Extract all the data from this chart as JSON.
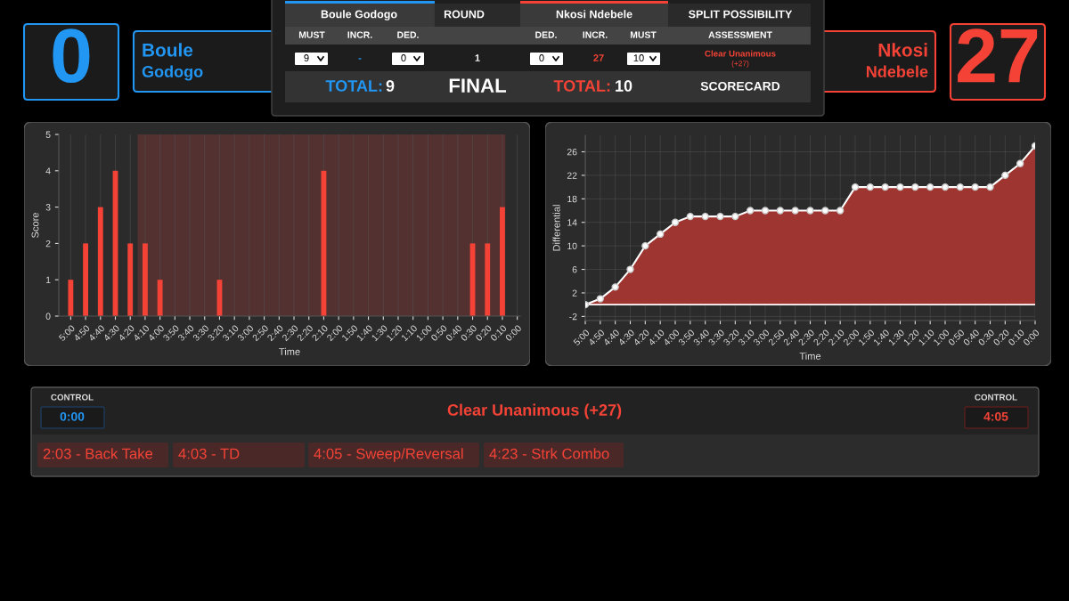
{
  "chart_data": [
    {
      "type": "other",
      "annotations": [
        "0",
        "Boule",
        "Godogo",
        "Boule Godogo",
        "ROUND",
        "Nkosi Ndebele",
        "SPLIT POSSIBILITY",
        "MUST",
        "INCR.",
        "DED.",
        "DED.",
        "INCR.",
        "MUST",
        "ASSESSMENT",
        "9",
        "-",
        "0",
        "1",
        "0",
        "27",
        "10",
        "Clear Unanimous",
        "(+27)",
        "TOTAL:",
        "9",
        "FINAL",
        "TOTAL:",
        "10",
        "SCORECARD",
        "Nkosi",
        "Ndebele",
        "27"
      ]
    },
    {
      "type": "bar",
      "xlabel": "Time",
      "ylabel": "Score",
      "x": [
        300,
        290,
        280,
        270,
        260,
        250,
        240,
        200,
        130,
        30,
        20,
        10
      ],
      "values": [
        1,
        2,
        3,
        4,
        2,
        2,
        1,
        1,
        4,
        2,
        2,
        3
      ],
      "color": "#f44336",
      "xlim": [
        308,
        -2
      ],
      "xticks": [
        {
          "value": 300,
          "label": "5:00"
        },
        {
          "value": 290,
          "label": "4:50"
        },
        {
          "value": 280,
          "label": "4:40"
        },
        {
          "value": 270,
          "label": "4:30"
        },
        {
          "value": 260,
          "label": "4:20"
        },
        {
          "value": 250,
          "label": "4:10"
        },
        {
          "value": 240,
          "label": "4:00"
        },
        {
          "value": 230,
          "label": "3:50"
        },
        {
          "value": 220,
          "label": "3:40"
        },
        {
          "value": 210,
          "label": "3:30"
        },
        {
          "value": 200,
          "label": "3:20"
        },
        {
          "value": 190,
          "label": "3:10"
        },
        {
          "value": 180,
          "label": "3:00"
        },
        {
          "value": 170,
          "label": "2:50"
        },
        {
          "value": 160,
          "label": "2:40"
        },
        {
          "value": 150,
          "label": "2:30"
        },
        {
          "value": 140,
          "label": "2:20"
        },
        {
          "value": 130,
          "label": "2:10"
        },
        {
          "value": 120,
          "label": "2:00"
        },
        {
          "value": 110,
          "label": "1:50"
        },
        {
          "value": 100,
          "label": "1:40"
        },
        {
          "value": 90,
          "label": "1:30"
        },
        {
          "value": 80,
          "label": "1:20"
        },
        {
          "value": 70,
          "label": "1:10"
        },
        {
          "value": 60,
          "label": "1:00"
        },
        {
          "value": 50,
          "label": "0:50"
        },
        {
          "value": 40,
          "label": "0:40"
        },
        {
          "value": 30,
          "label": "0:30"
        },
        {
          "value": 20,
          "label": "0:20"
        },
        {
          "value": 10,
          "label": "0:10"
        },
        {
          "value": 0,
          "label": "0:00"
        }
      ],
      "ylim": [
        0,
        5
      ],
      "yticks": [
        0,
        1,
        2,
        3,
        4,
        5
      ],
      "bands": [
        {
          "axis": "x",
          "from": 255,
          "to": 8,
          "color": "#533131"
        }
      ],
      "grid": "x"
    },
    {
      "type": "area",
      "xlabel": "Time",
      "ylabel": "Differential",
      "x": [
        300,
        290,
        280,
        270,
        260,
        250,
        240,
        230,
        220,
        210,
        200,
        190,
        180,
        170,
        160,
        150,
        140,
        130,
        120,
        110,
        100,
        90,
        80,
        70,
        60,
        50,
        40,
        30,
        20,
        10,
        0
      ],
      "series": [
        {
          "color": "#9e3530",
          "values": [
            0,
            1,
            3,
            6,
            10,
            12,
            14,
            15,
            15,
            15,
            15,
            16,
            16,
            16,
            16,
            16,
            16,
            16,
            20,
            20,
            20,
            20,
            20,
            20,
            20,
            20,
            20,
            20,
            22,
            24,
            27
          ]
        }
      ],
      "xlim": [
        300,
        0
      ],
      "xticks": [
        {
          "value": 300,
          "label": "5:00"
        },
        {
          "value": 290,
          "label": "4:50"
        },
        {
          "value": 280,
          "label": "4:40"
        },
        {
          "value": 270,
          "label": "4:30"
        },
        {
          "value": 260,
          "label": "4:20"
        },
        {
          "value": 250,
          "label": "4:10"
        },
        {
          "value": 240,
          "label": "4:00"
        },
        {
          "value": 230,
          "label": "3:50"
        },
        {
          "value": 220,
          "label": "3:40"
        },
        {
          "value": 210,
          "label": "3:30"
        },
        {
          "value": 200,
          "label": "3:20"
        },
        {
          "value": 190,
          "label": "3:10"
        },
        {
          "value": 180,
          "label": "3:00"
        },
        {
          "value": 170,
          "label": "2:50"
        },
        {
          "value": 160,
          "label": "2:40"
        },
        {
          "value": 150,
          "label": "2:30"
        },
        {
          "value": 140,
          "label": "2:20"
        },
        {
          "value": 130,
          "label": "2:10"
        },
        {
          "value": 120,
          "label": "2:00"
        },
        {
          "value": 110,
          "label": "1:50"
        },
        {
          "value": 100,
          "label": "1:40"
        },
        {
          "value": 90,
          "label": "1:30"
        },
        {
          "value": 80,
          "label": "1:20"
        },
        {
          "value": 70,
          "label": "1:10"
        },
        {
          "value": 60,
          "label": "1:00"
        },
        {
          "value": 50,
          "label": "0:50"
        },
        {
          "value": 40,
          "label": "0:40"
        },
        {
          "value": 30,
          "label": "0:30"
        },
        {
          "value": 20,
          "label": "0:20"
        },
        {
          "value": 10,
          "label": "0:10"
        },
        {
          "value": 0,
          "label": "0:00"
        }
      ],
      "ylim": [
        -2.7,
        28.8
      ],
      "yticks": [
        -2,
        2,
        6,
        10,
        14,
        18,
        22,
        26
      ],
      "ref_lines": [
        {
          "axis": "y",
          "value": 0,
          "color": "#ffffff"
        }
      ],
      "grid": true,
      "marker": "circle"
    },
    {
      "type": "other",
      "annotations": [
        "CONTROL",
        "0:00",
        "Clear Unanimous (+27)",
        "CONTROL",
        "4:05",
        "2:03 - Back Take",
        "4:03 - TD",
        "4:05 - Sweep/Reversal",
        "4:23 - Strk Combo"
      ]
    }
  ]
}
